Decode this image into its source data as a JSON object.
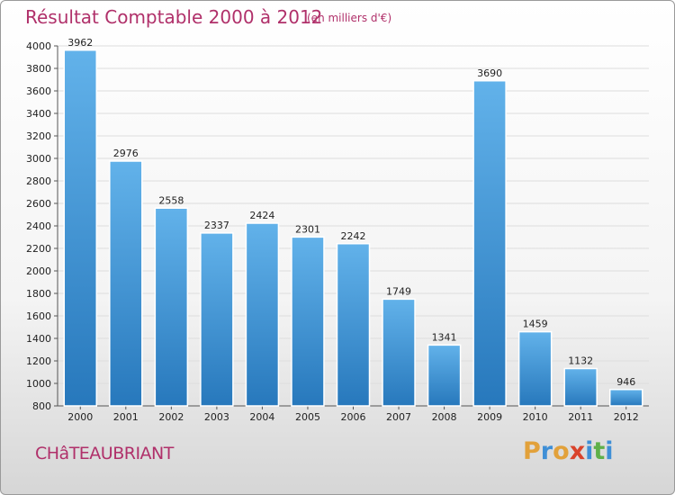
{
  "header": {
    "title": "Résultat Comptable 2000 à 2012",
    "subtitle": "(en milliers d'€)"
  },
  "footer": {
    "city": "CHâTEAUBRIANT",
    "logo_letters": [
      "P",
      "r",
      "o",
      "x",
      "i",
      "t",
      "i"
    ],
    "logo_colors": [
      "#e2a13a",
      "#3f8fd6",
      "#e2a13a",
      "#d9432b",
      "#3f8fd6",
      "#5fb04a",
      "#3f8fd6"
    ]
  },
  "colors": {
    "bar_light": "#5eaee8",
    "bar_dark": "#2a7bbf",
    "title": "#b0306a",
    "grid": "#dddddd"
  },
  "chart_data": {
    "type": "bar",
    "title": "Résultat Comptable 2000 à 2012",
    "ylabel": "(en milliers d'€)",
    "xlabel": "",
    "categories": [
      "2000",
      "2001",
      "2002",
      "2003",
      "2004",
      "2005",
      "2006",
      "2007",
      "2008",
      "2009",
      "2010",
      "2011",
      "2012"
    ],
    "values": [
      3962,
      2976,
      2558,
      2337,
      2424,
      2301,
      2242,
      1749,
      1341,
      3690,
      1459,
      1132,
      946
    ],
    "ylim": [
      800,
      4000
    ],
    "yticks": [
      800,
      1000,
      1200,
      1400,
      1600,
      1800,
      2000,
      2200,
      2400,
      2600,
      2800,
      3000,
      3200,
      3400,
      3600,
      3800,
      4000
    ],
    "grid": true
  }
}
